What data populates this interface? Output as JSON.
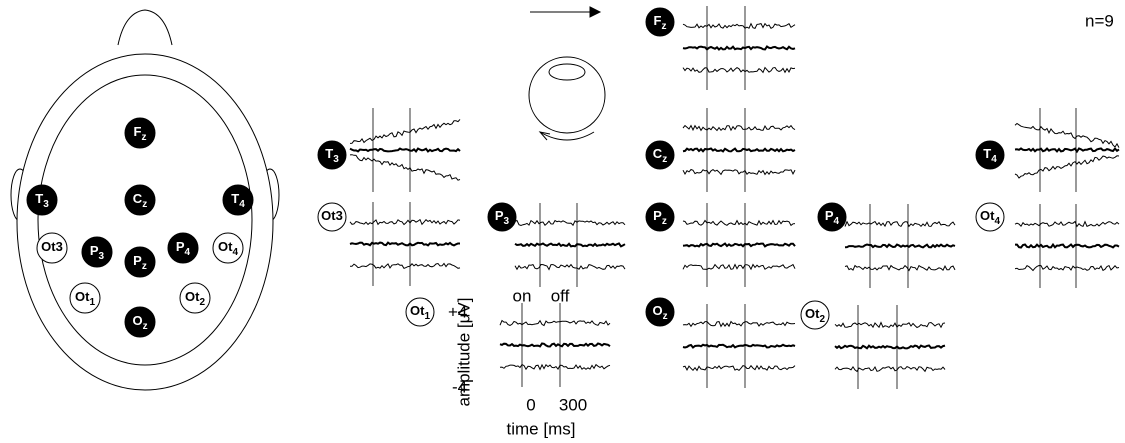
{
  "head": {
    "electrodes": [
      {
        "main": "F",
        "sub": "z"
      },
      {
        "main": "T",
        "sub": "3"
      },
      {
        "main": "C",
        "sub": "z"
      },
      {
        "main": "T",
        "sub": "4"
      },
      {
        "main": "Ot3"
      },
      {
        "main": "P",
        "sub": "3"
      },
      {
        "main": "P",
        "sub": "z"
      },
      {
        "main": "P",
        "sub": "4"
      },
      {
        "main": "Ot",
        "sub": "4"
      },
      {
        "main": "Ot",
        "sub": "1"
      },
      {
        "main": "O",
        "sub": "z"
      },
      {
        "main": "Ot",
        "sub": "2"
      }
    ]
  },
  "panels": [
    {
      "main": "T",
      "sub": "3"
    },
    {
      "main": "Ot3"
    },
    {
      "main": "P",
      "sub": "3"
    },
    {
      "main": "Ot",
      "sub": "1"
    },
    {
      "main": "F",
      "sub": "z"
    },
    {
      "main": "C",
      "sub": "z"
    },
    {
      "main": "P",
      "sub": "z"
    },
    {
      "main": "O",
      "sub": "z"
    },
    {
      "main": "P",
      "sub": "4"
    },
    {
      "main": "Ot",
      "sub": "2"
    },
    {
      "main": "T",
      "sub": "4"
    },
    {
      "main": "Ot",
      "sub": "4"
    }
  ],
  "subjects": "n=9",
  "scale": {
    "amplitude_label": "amplitude [μV]",
    "amp_top": "+4",
    "amp_bottom": "-4",
    "on": "on",
    "off": "off",
    "t0": "0",
    "t1": "300",
    "time_label": "time [ms]"
  }
}
